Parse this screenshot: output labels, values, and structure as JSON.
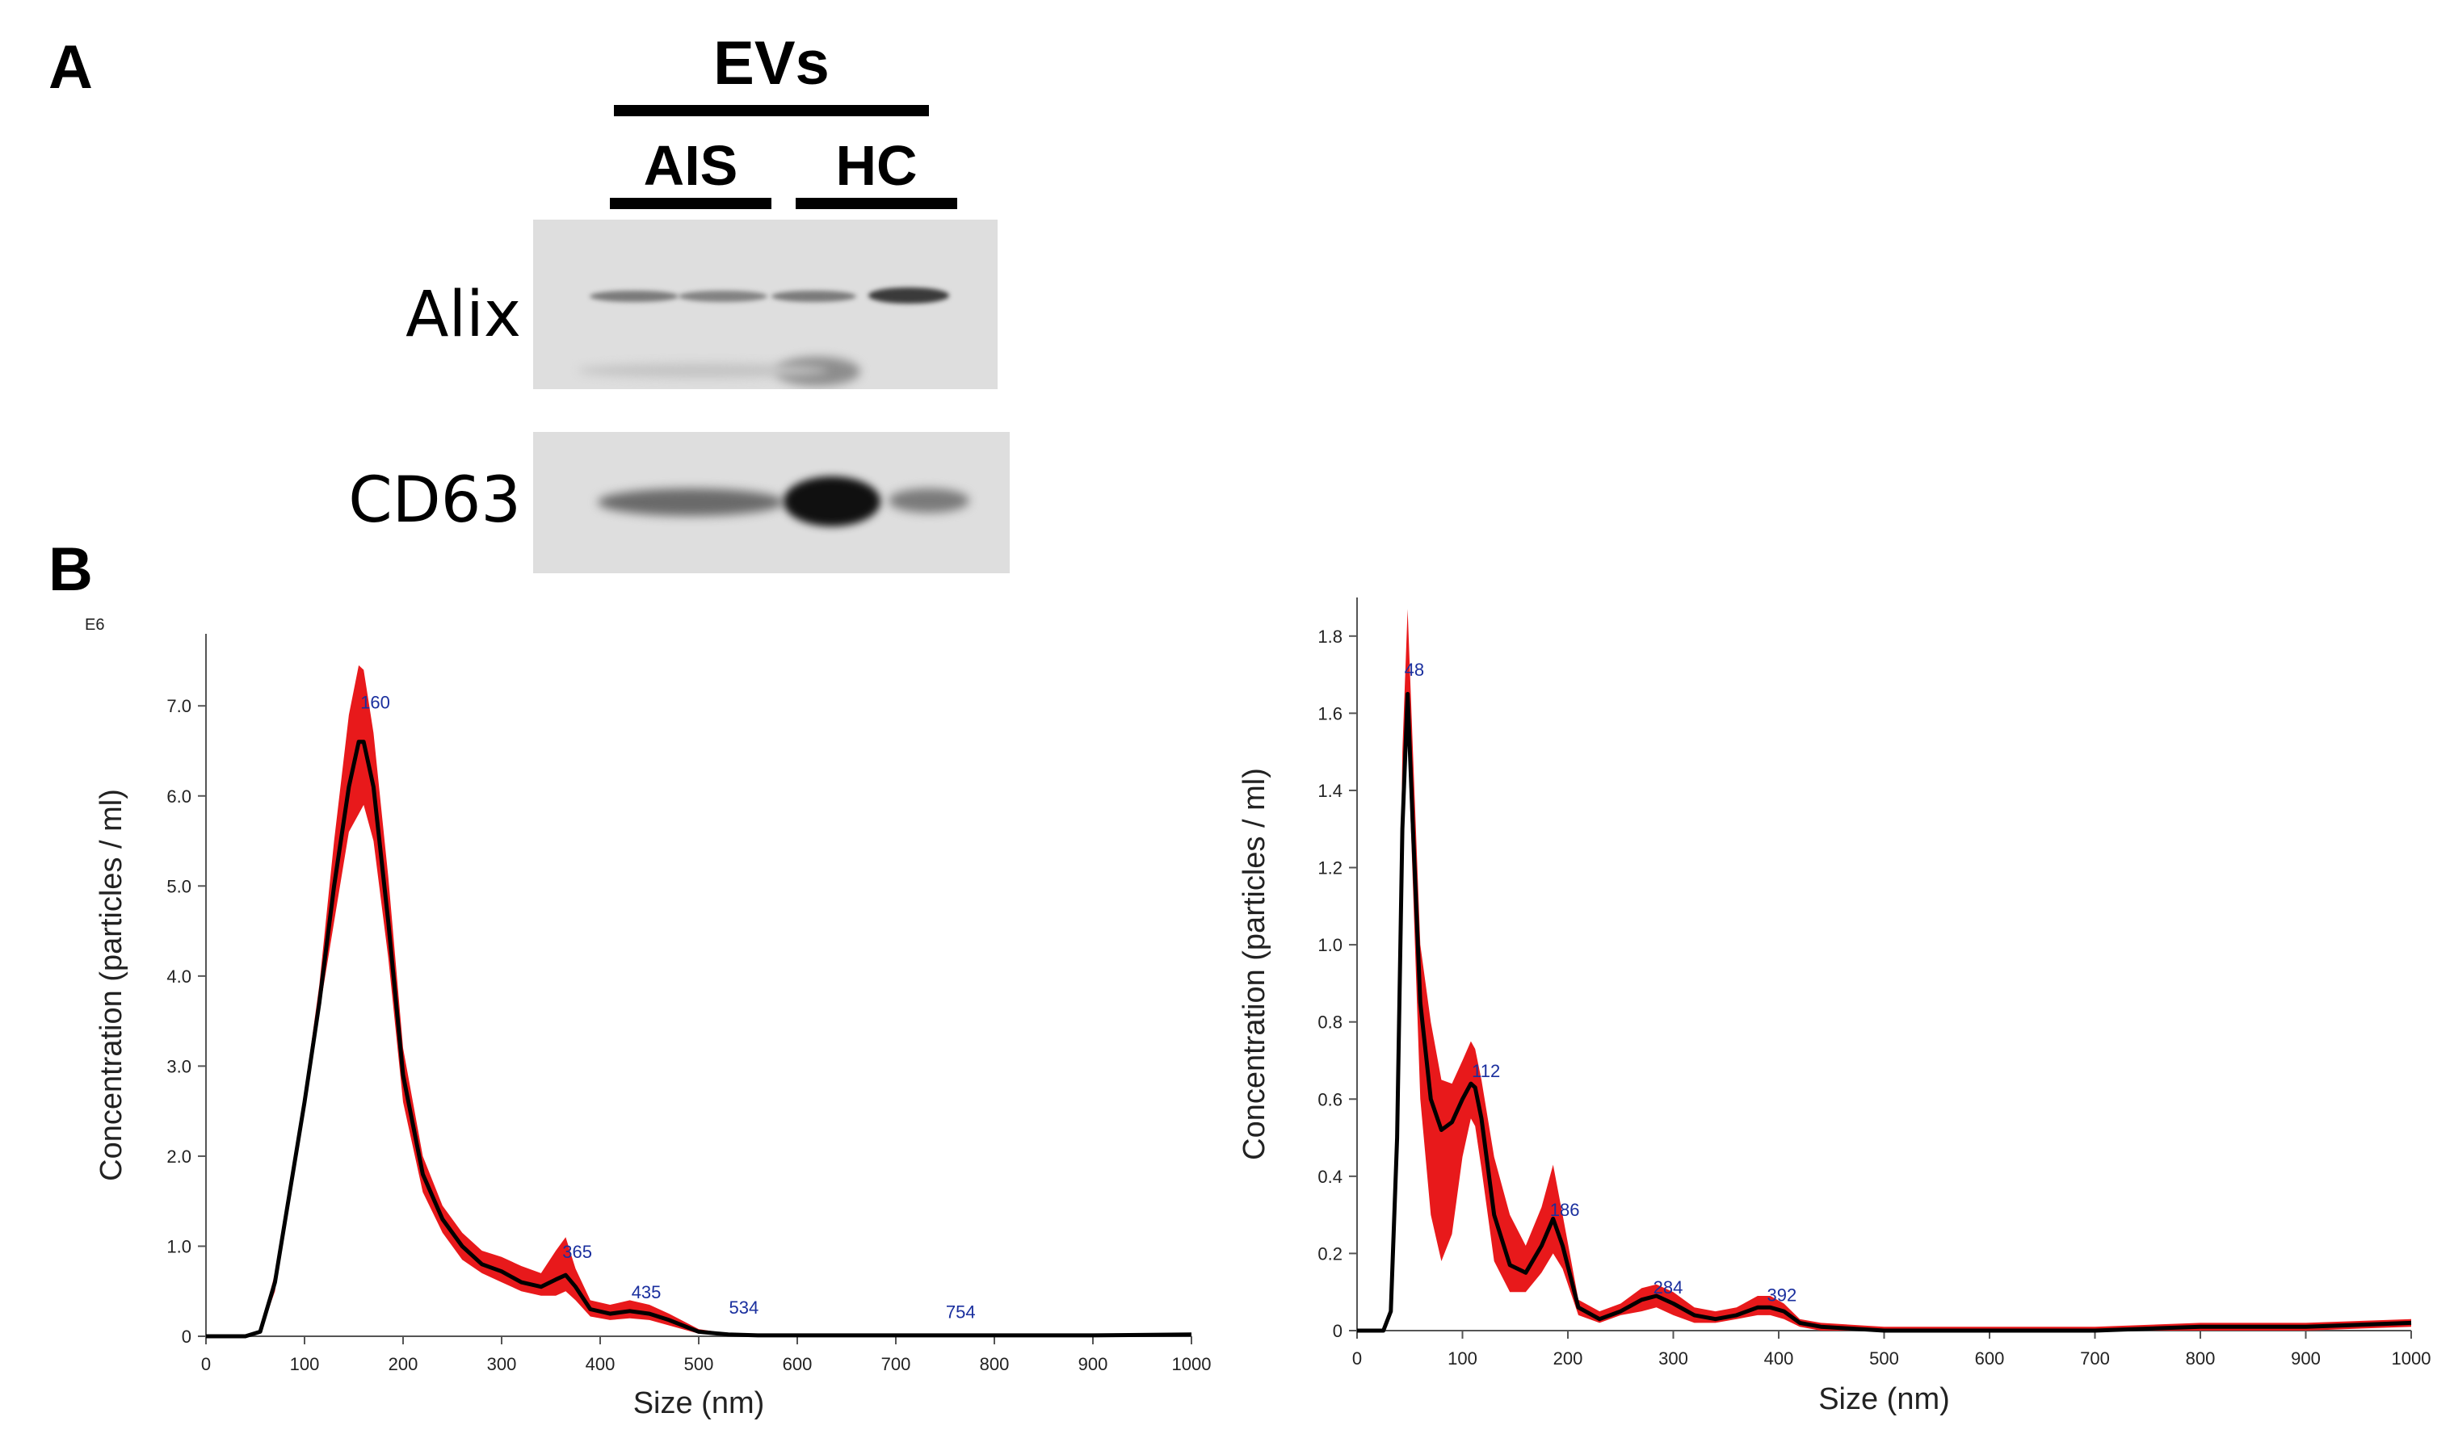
{
  "panel_a": {
    "letter": "A",
    "group_label": "EVs",
    "sub_labels": [
      "AIS",
      "HC"
    ],
    "proteins": [
      "Alix",
      "CD63"
    ]
  },
  "panel_b": {
    "letter": "B"
  },
  "colors": {
    "ci_band": "#e8191b",
    "mean_line": "#000000",
    "peak_labels": "#1a2f9e"
  },
  "chart_data": [
    {
      "type": "area",
      "multiplier_label": "E6",
      "xlabel": "Size (nm)",
      "ylabel": "Concentration (particles / ml)",
      "xlim": [
        0,
        1000
      ],
      "ylim": [
        0,
        7.8
      ],
      "xticks": [
        "0",
        "100",
        "200",
        "300",
        "400",
        "500",
        "600",
        "700",
        "800",
        "900",
        "1000"
      ],
      "yticks": [
        "0",
        "1.0",
        "2.0",
        "3.0",
        "4.0",
        "5.0",
        "6.0",
        "7.0"
      ],
      "peak_labels": [
        "160",
        "365",
        "435",
        "534",
        "754"
      ],
      "peak_label_x": [
        160,
        365,
        435,
        534,
        754
      ],
      "peak_label_y": [
        6.9,
        0.8,
        0.35,
        0.18,
        0.13
      ],
      "series": [
        {
          "x": [
            0,
            40,
            55,
            70,
            85,
            100,
            115,
            130,
            145,
            155,
            160,
            170,
            185,
            200,
            220,
            240,
            260,
            280,
            300,
            320,
            340,
            355,
            365,
            375,
            390,
            410,
            430,
            450,
            470,
            500,
            530,
            560,
            600,
            700,
            800,
            900,
            1000
          ],
          "mean": [
            0,
            0,
            0.05,
            0.6,
            1.6,
            2.6,
            3.7,
            5.0,
            6.1,
            6.6,
            6.6,
            6.1,
            4.6,
            2.9,
            1.8,
            1.3,
            1.0,
            0.8,
            0.72,
            0.6,
            0.55,
            0.63,
            0.68,
            0.55,
            0.3,
            0.25,
            0.28,
            0.25,
            0.18,
            0.05,
            0.02,
            0.01,
            0.01,
            0.01,
            0.01,
            0.01,
            0.02
          ],
          "lower": [
            0,
            0,
            0.03,
            0.5,
            1.5,
            2.5,
            3.6,
            4.6,
            5.6,
            5.8,
            5.9,
            5.5,
            4.2,
            2.6,
            1.6,
            1.15,
            0.85,
            0.7,
            0.6,
            0.5,
            0.45,
            0.45,
            0.5,
            0.4,
            0.22,
            0.18,
            0.2,
            0.18,
            0.12,
            0.03,
            0.01,
            0.0,
            0.0,
            0.0,
            0.0,
            0.0,
            0.0
          ],
          "upper": [
            0,
            0,
            0.07,
            0.7,
            1.7,
            2.7,
            3.9,
            5.5,
            6.9,
            7.45,
            7.4,
            6.7,
            5.1,
            3.2,
            2.0,
            1.45,
            1.15,
            0.95,
            0.88,
            0.78,
            0.7,
            0.95,
            1.1,
            0.75,
            0.4,
            0.35,
            0.4,
            0.35,
            0.25,
            0.08,
            0.03,
            0.02,
            0.02,
            0.02,
            0.02,
            0.02,
            0.03
          ]
        }
      ]
    },
    {
      "type": "area",
      "xlabel": "Size (nm)",
      "ylabel": "Concentration (particles / ml)",
      "xlim": [
        0,
        1000
      ],
      "ylim": [
        0,
        1.9
      ],
      "xticks": [
        "0",
        "100",
        "200",
        "300",
        "400",
        "500",
        "600",
        "700",
        "800",
        "900",
        "1000"
      ],
      "yticks": [
        "0",
        "0.2",
        "0.4",
        "0.6",
        "0.8",
        "1.0",
        "1.2",
        "1.4",
        "1.6",
        "1.8"
      ],
      "peak_labels": [
        "48",
        "112",
        "186",
        "284",
        "392"
      ],
      "peak_label_x": [
        48,
        112,
        186,
        284,
        392
      ],
      "peak_label_y": [
        1.68,
        0.64,
        0.28,
        0.08,
        0.06
      ],
      "series": [
        {
          "x": [
            0,
            25,
            32,
            38,
            43,
            48,
            53,
            60,
            70,
            80,
            90,
            100,
            108,
            112,
            118,
            130,
            145,
            160,
            175,
            186,
            195,
            210,
            230,
            250,
            270,
            284,
            300,
            320,
            340,
            360,
            380,
            392,
            405,
            420,
            440,
            500,
            600,
            700,
            800,
            900,
            1000
          ],
          "mean": [
            0,
            0,
            0.05,
            0.5,
            1.3,
            1.65,
            1.3,
            0.85,
            0.6,
            0.52,
            0.54,
            0.6,
            0.64,
            0.63,
            0.55,
            0.3,
            0.17,
            0.15,
            0.22,
            0.29,
            0.22,
            0.06,
            0.03,
            0.05,
            0.08,
            0.09,
            0.07,
            0.04,
            0.03,
            0.04,
            0.06,
            0.06,
            0.05,
            0.02,
            0.01,
            0.0,
            0.0,
            0.0,
            0.01,
            0.01,
            0.02
          ],
          "lower": [
            0,
            0,
            0.04,
            0.45,
            1.2,
            1.55,
            1.15,
            0.6,
            0.3,
            0.18,
            0.25,
            0.45,
            0.55,
            0.53,
            0.42,
            0.18,
            0.1,
            0.1,
            0.15,
            0.2,
            0.16,
            0.04,
            0.02,
            0.04,
            0.05,
            0.06,
            0.04,
            0.02,
            0.02,
            0.03,
            0.04,
            0.04,
            0.03,
            0.01,
            0.0,
            0.0,
            0.0,
            0.0,
            0.0,
            0.0,
            0.01
          ],
          "upper": [
            0,
            0,
            0.06,
            0.55,
            1.5,
            1.87,
            1.5,
            1.0,
            0.8,
            0.65,
            0.64,
            0.7,
            0.75,
            0.73,
            0.65,
            0.45,
            0.3,
            0.22,
            0.32,
            0.43,
            0.3,
            0.08,
            0.05,
            0.07,
            0.11,
            0.12,
            0.1,
            0.06,
            0.05,
            0.06,
            0.09,
            0.09,
            0.07,
            0.03,
            0.02,
            0.01,
            0.01,
            0.01,
            0.02,
            0.02,
            0.03
          ]
        }
      ]
    }
  ]
}
